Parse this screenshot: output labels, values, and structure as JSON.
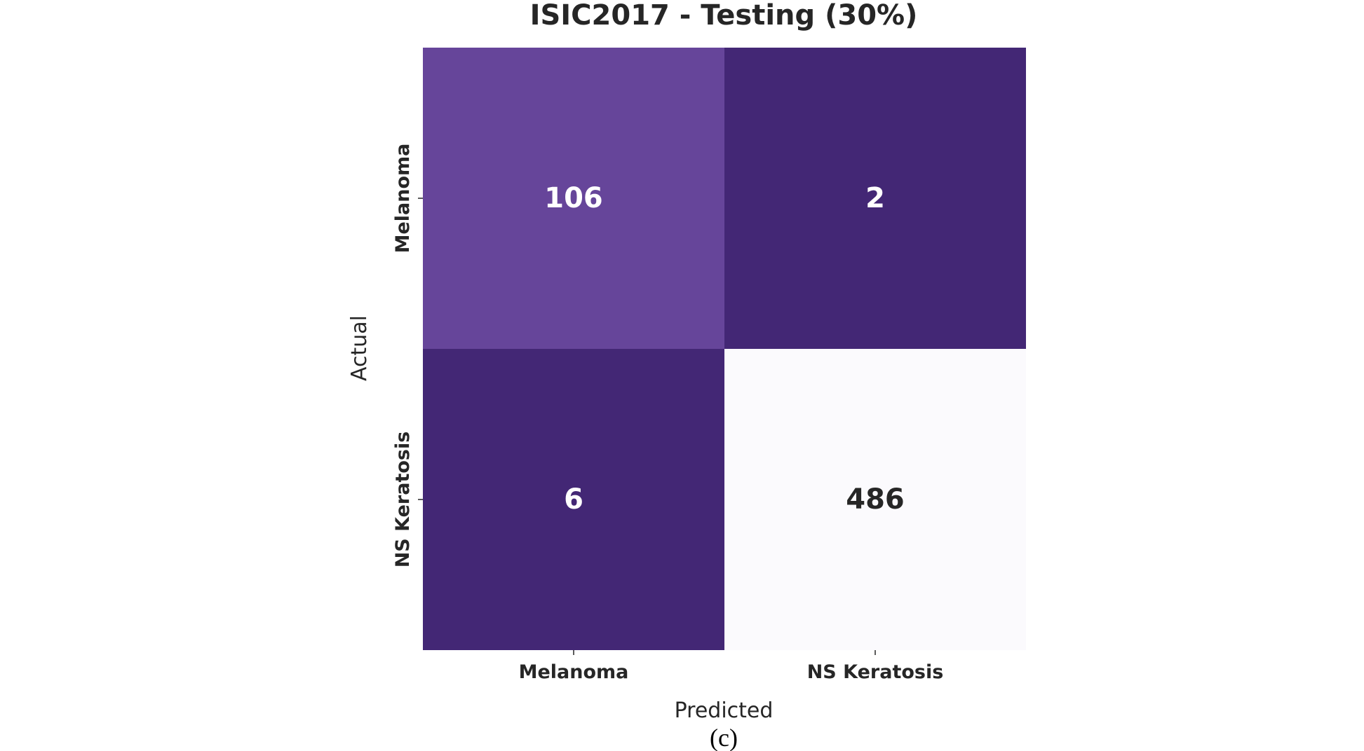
{
  "chart_data": {
    "type": "heatmap",
    "title": "ISIC2017 - Testing (30%)",
    "xlabel": "Predicted",
    "ylabel": "Actual",
    "x_categories": [
      "Melanoma",
      "NS Keratosis"
    ],
    "y_categories": [
      "Melanoma",
      "NS Keratosis"
    ],
    "values": [
      [
        106,
        2
      ],
      [
        6,
        486
      ]
    ],
    "colormap": "Purples",
    "colorbar": false,
    "cell_colors": [
      [
        "#66459a",
        "#432775"
      ],
      [
        "#432775",
        "#fbfafd"
      ]
    ],
    "annotation_colors": [
      [
        "#ffffff",
        "#ffffff"
      ],
      [
        "#ffffff",
        "#262626"
      ]
    ]
  },
  "caption": "(c)"
}
